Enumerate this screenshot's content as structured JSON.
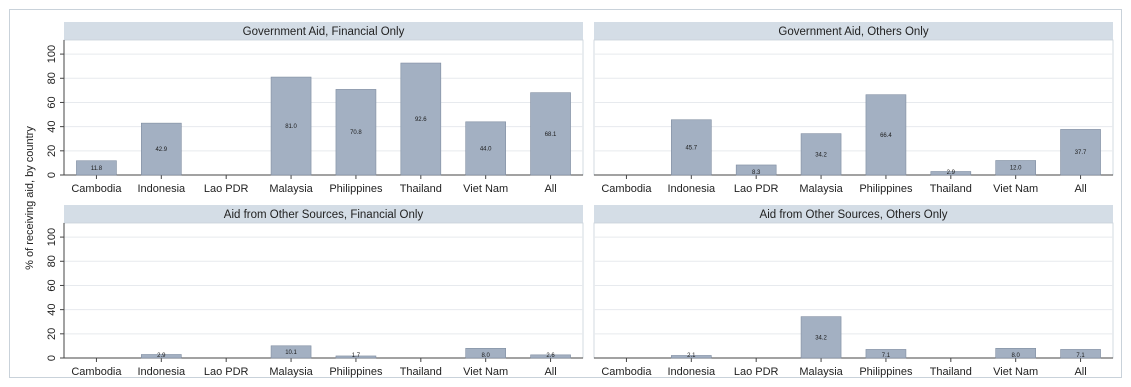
{
  "chart_data": {
    "type": "bar",
    "ylabel": "% of receiving aid, by country",
    "ylim": [
      0,
      110
    ],
    "yticks": [
      0,
      20,
      40,
      60,
      80,
      100
    ],
    "categories": [
      "Cambodia",
      "Indonesia",
      "Lao PDR",
      "Malaysia",
      "Philippines",
      "Thailand",
      "Viet Nam",
      "All"
    ],
    "grid": true,
    "colors": {
      "bar": "#a3b0c2",
      "bar_stroke": "#7f8da1",
      "panel_header": "#d4dde6",
      "frame": "#c9d2da",
      "grid": "#e7eaee"
    },
    "panels": [
      {
        "title": "Government Aid, Financial Only",
        "values": [
          11.8,
          42.9,
          null,
          81.0,
          70.8,
          92.6,
          44.0,
          68.1
        ],
        "labels": [
          "11.8",
          "42.9",
          "",
          "81.0",
          "70.8",
          "92.6",
          "44.0",
          "68.1"
        ]
      },
      {
        "title": "Government Aid, Others Only",
        "values": [
          null,
          45.7,
          8.3,
          34.2,
          66.4,
          2.9,
          12.0,
          37.7
        ],
        "labels": [
          "",
          "45.7",
          "8.3",
          "34.2",
          "66.4",
          "2.9",
          "12.0",
          "37.7"
        ]
      },
      {
        "title": "Aid from Other Sources, Financial Only",
        "values": [
          null,
          2.9,
          null,
          10.1,
          1.7,
          null,
          8.0,
          2.6
        ],
        "labels": [
          "",
          "2.9",
          "",
          "10.1",
          "1.7",
          "",
          "8.0",
          "2.6"
        ]
      },
      {
        "title": "Aid from Other Sources, Others Only",
        "values": [
          null,
          2.1,
          null,
          34.2,
          7.1,
          null,
          8.0,
          7.1
        ],
        "labels": [
          "",
          "2.1",
          "",
          "34.2",
          "7.1",
          "",
          "8.0",
          "7.1"
        ]
      }
    ]
  }
}
